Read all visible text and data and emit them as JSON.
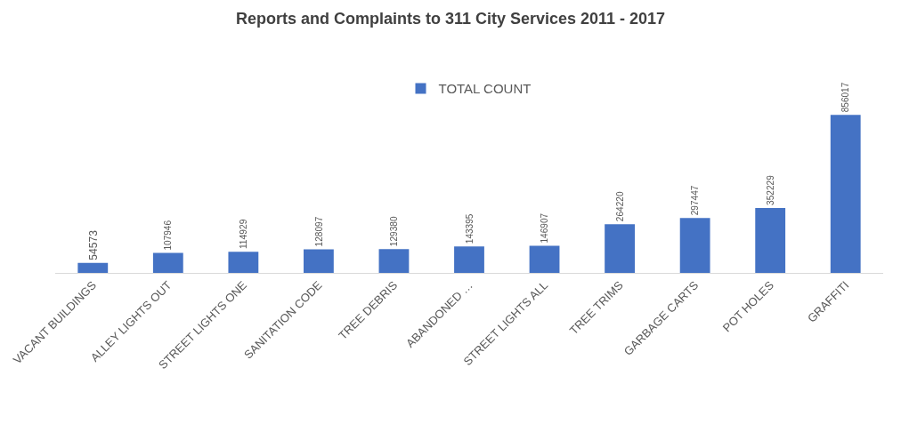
{
  "chart_data": {
    "type": "bar",
    "title": "Reports and Complaints to 311 City Services 2011 - 2017",
    "categories": [
      "VACANT BUILDINGS",
      "ALLEY LIGHTS OUT",
      "STREET LIGHTS ONE",
      "SANITATION CODE",
      "TREE DEBRIS",
      "ABANDONED …",
      "STREET LIGHTS ALL",
      "TREE TRIMS",
      "GARBAGE CARTS",
      "POT HOLES",
      "GRAFFITI"
    ],
    "series": [
      {
        "name": "TOTAL COUNT",
        "color": "#4472c4",
        "values": [
          54573,
          107946,
          114929,
          128097,
          129380,
          143395,
          146907,
          264220,
          297447,
          352229,
          856017
        ]
      }
    ],
    "data_labels": true,
    "grid": false,
    "legend": "top"
  }
}
